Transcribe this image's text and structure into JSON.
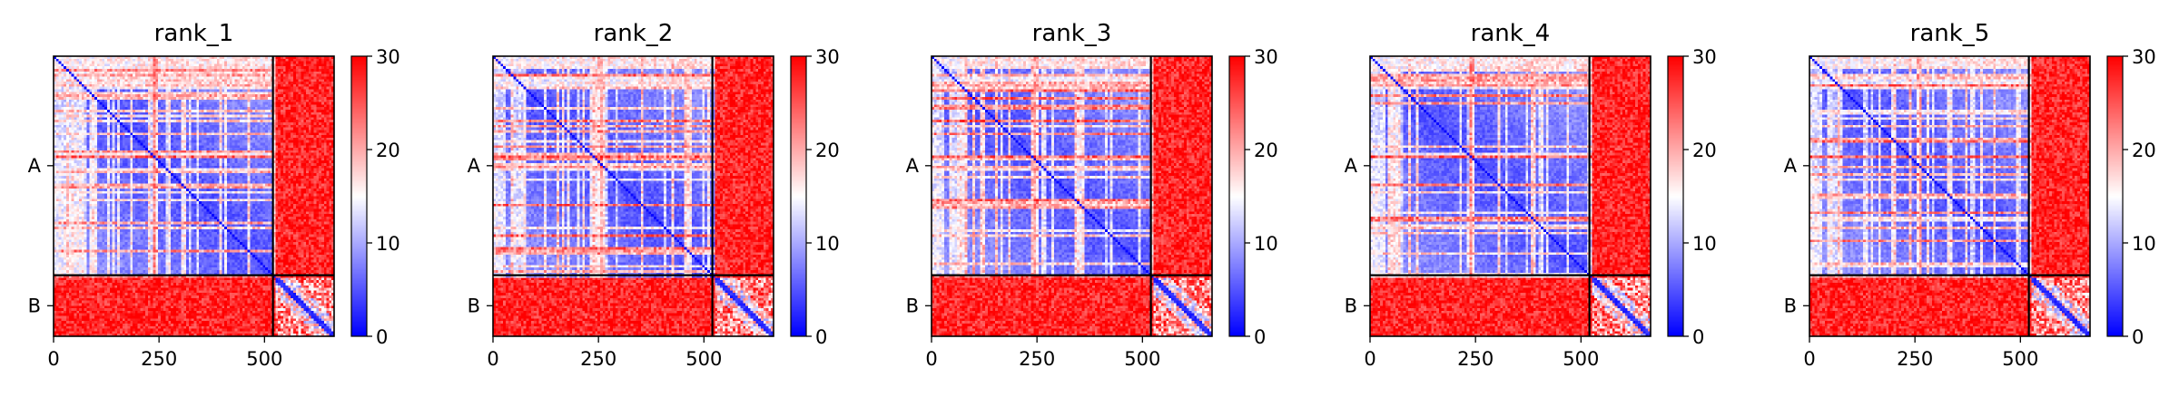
{
  "chart_data": {
    "type": "heatmap",
    "colormap": "bwr",
    "colors": {
      "low": "#0000ff",
      "mid": "#ffffff",
      "high": "#ff0000"
    },
    "value_range": [
      0,
      30
    ],
    "colorbar_ticks": [
      "0",
      "10",
      "20",
      "30"
    ],
    "x_ticks": [
      "0",
      "250",
      "500"
    ],
    "x_tick_values": [
      0,
      250,
      500
    ],
    "x_range": [
      0,
      665
    ],
    "chain_boundary": 520,
    "chains": [
      {
        "label": "A",
        "start": 0,
        "end": 520
      },
      {
        "label": "B",
        "start": 520,
        "end": 665
      }
    ],
    "panels": [
      {
        "title": "rank_1",
        "seed": 11
      },
      {
        "title": "rank_2",
        "seed": 23
      },
      {
        "title": "rank_3",
        "seed": 37
      },
      {
        "title": "rank_4",
        "seed": 41
      },
      {
        "title": "rank_5",
        "seed": 59
      }
    ]
  }
}
